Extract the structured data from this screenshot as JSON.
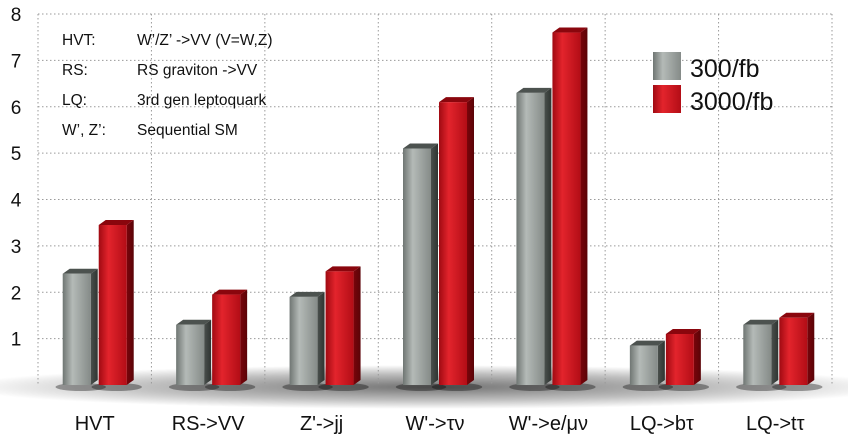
{
  "chart_data": {
    "type": "bar",
    "title": "",
    "xlabel": "",
    "ylabel": "",
    "ylim": [
      0,
      8
    ],
    "yticks": [
      1,
      2,
      3,
      4,
      5,
      6,
      7,
      8
    ],
    "grid": true,
    "legend_position": "top-right",
    "categories": [
      "HVT",
      "RS->VV",
      "Z'->jj",
      "W'->τν",
      "W'->e/μν",
      "LQ->bτ",
      "LQ->tτ"
    ],
    "series": [
      {
        "name": "300/fb",
        "color": "#8f9592",
        "values": [
          2.4,
          1.3,
          1.9,
          5.1,
          6.3,
          0.85,
          1.3
        ]
      },
      {
        "name": "3000/fb",
        "color": "#c8101a",
        "values": [
          3.45,
          1.95,
          2.45,
          6.1,
          7.6,
          1.1,
          1.45
        ]
      }
    ],
    "annotations": [
      {
        "key": "HVT:",
        "text": "W’/Z’ ->VV (V=W,Z)"
      },
      {
        "key": "RS:",
        "text": "RS graviton ->VV"
      },
      {
        "key": "LQ:",
        "text": "3rd gen leptoquark"
      },
      {
        "key": "W’, Z’:",
        "text": "Sequential SM"
      }
    ]
  }
}
